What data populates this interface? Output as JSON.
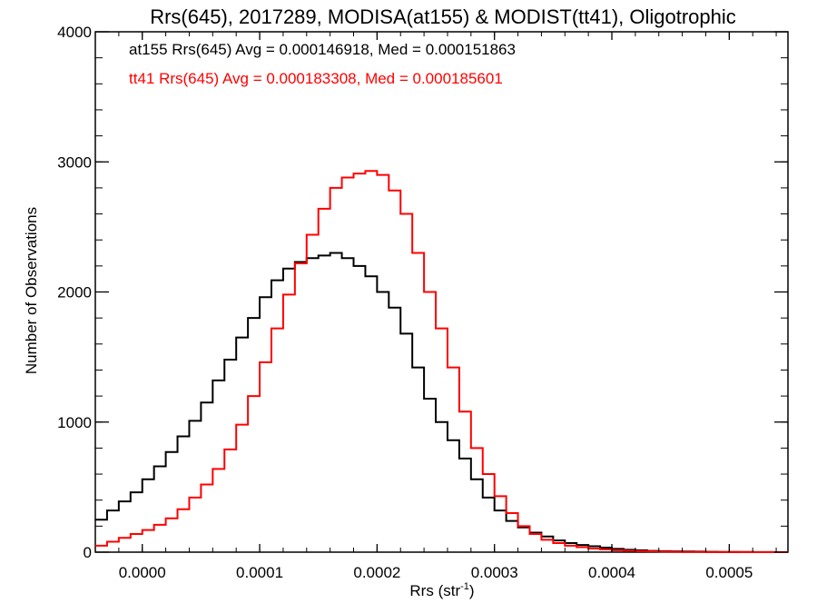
{
  "chart_data": {
    "type": "line",
    "step": true,
    "title": "Rrs(645), 2017289, MODISA(at155) & MODIST(tt41), Oligotrophic",
    "xlabel": "Rrs (str",
    "xlabel_sup": "-1",
    "xlabel_end": ")",
    "ylabel": "Number of Observations",
    "xlim": [
      -4e-05,
      0.00055
    ],
    "ylim": [
      0,
      4000
    ],
    "x_ticks": [
      0.0,
      0.0001,
      0.0002,
      0.0003,
      0.0004,
      0.0005
    ],
    "x_tick_labels": [
      "0.0000",
      "0.0001",
      "0.0002",
      "0.0003",
      "0.0004",
      "0.0005"
    ],
    "y_ticks": [
      0,
      1000,
      2000,
      3000,
      4000
    ],
    "y_tick_labels": [
      "0",
      "1000",
      "2000",
      "3000",
      "4000"
    ],
    "grid": false,
    "annotations": [
      {
        "text": "at155 Rrs(645) Avg = 0.000146918, Med = 0.000151863",
        "color": "#000000"
      },
      {
        "text": "tt41 Rrs(645) Avg = 0.000183308, Med = 0.000185601",
        "color": "#ff0000"
      }
    ],
    "series": [
      {
        "name": "at155",
        "color": "#000000",
        "x": [
          -4e-05,
          -3e-05,
          -2e-05,
          -1e-05,
          0.0,
          1e-05,
          2e-05,
          3e-05,
          4e-05,
          5e-05,
          6e-05,
          7e-05,
          8e-05,
          9e-05,
          0.0001,
          0.00011,
          0.00012,
          0.00013,
          0.00014,
          0.00015,
          0.00016,
          0.00017,
          0.00018,
          0.00019,
          0.0002,
          0.00021,
          0.00022,
          0.00023,
          0.00024,
          0.00025,
          0.00026,
          0.00027,
          0.00028,
          0.00029,
          0.0003,
          0.00031,
          0.00032,
          0.00033,
          0.00034,
          0.00035,
          0.00036,
          0.00037,
          0.00038,
          0.00039,
          0.0004,
          0.00041,
          0.00042,
          0.00043,
          0.00044,
          0.00045,
          0.00046,
          0.00047,
          0.00048,
          0.00049,
          0.0005,
          0.00051,
          0.00052,
          0.00053,
          0.00054,
          0.00055
        ],
        "values": [
          250,
          320,
          390,
          460,
          560,
          660,
          770,
          890,
          1010,
          1150,
          1320,
          1480,
          1650,
          1800,
          1960,
          2090,
          2180,
          2230,
          2260,
          2280,
          2300,
          2260,
          2200,
          2120,
          2000,
          1880,
          1680,
          1420,
          1180,
          1000,
          860,
          720,
          560,
          420,
          320,
          240,
          190,
          150,
          120,
          90,
          70,
          55,
          45,
          35,
          25,
          18,
          14,
          10,
          8,
          6,
          5,
          4,
          3,
          2,
          2,
          2,
          1,
          1,
          0,
          0
        ]
      },
      {
        "name": "tt41",
        "color": "#ff0000",
        "x": [
          -4e-05,
          -3e-05,
          -2e-05,
          -1e-05,
          0.0,
          1e-05,
          2e-05,
          3e-05,
          4e-05,
          5e-05,
          6e-05,
          7e-05,
          8e-05,
          9e-05,
          0.0001,
          0.00011,
          0.00012,
          0.00013,
          0.00014,
          0.00015,
          0.00016,
          0.00017,
          0.00018,
          0.00019,
          0.0002,
          0.00021,
          0.00022,
          0.00023,
          0.00024,
          0.00025,
          0.00026,
          0.00027,
          0.00028,
          0.00029,
          0.0003,
          0.00031,
          0.00032,
          0.00033,
          0.00034,
          0.00035,
          0.00036,
          0.00037,
          0.00038,
          0.00039,
          0.0004,
          0.00041,
          0.00042,
          0.00043,
          0.00044,
          0.00045,
          0.00046,
          0.00047,
          0.00048,
          0.00049,
          0.0005,
          0.00051,
          0.00052,
          0.00053,
          0.00054,
          0.00055
        ],
        "values": [
          50,
          80,
          110,
          140,
          170,
          210,
          260,
          330,
          420,
          520,
          640,
          790,
          980,
          1200,
          1460,
          1720,
          1980,
          2220,
          2440,
          2640,
          2800,
          2880,
          2910,
          2930,
          2900,
          2780,
          2600,
          2300,
          2000,
          1720,
          1420,
          1080,
          800,
          600,
          430,
          300,
          200,
          140,
          95,
          70,
          50,
          38,
          28,
          22,
          15,
          11,
          8,
          6,
          4,
          3,
          2,
          2,
          1,
          1,
          1,
          0,
          0,
          0,
          0,
          0
        ]
      }
    ]
  }
}
